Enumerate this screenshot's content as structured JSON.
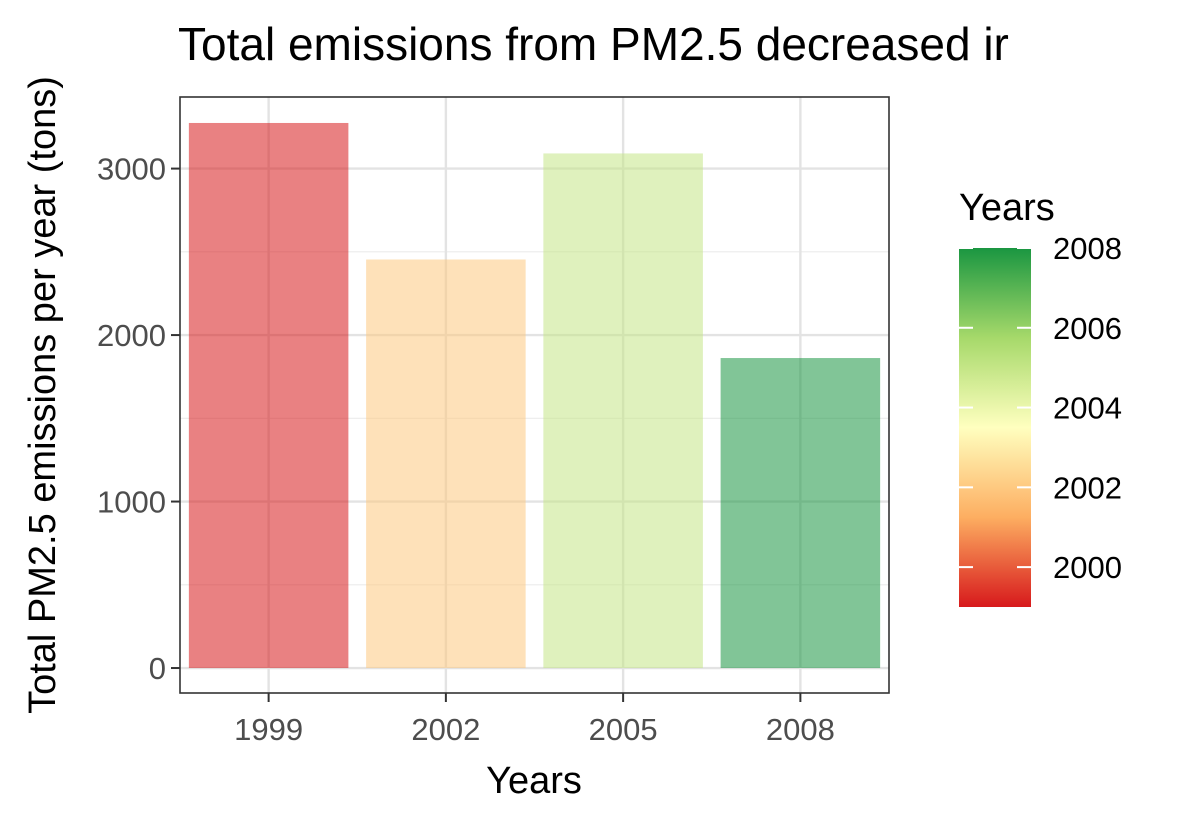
{
  "chart_data": {
    "type": "bar",
    "title": "Total emissions from PM2.5 decreased ir",
    "xlabel": "Years",
    "ylabel": "Total PM2.5 emissions per year (tons)",
    "categories": [
      "1999",
      "2002",
      "2005",
      "2008"
    ],
    "values": [
      3274,
      2454,
      3091,
      1862
    ],
    "x_numeric": [
      1999,
      2002,
      2005,
      2008
    ],
    "ylim": [
      -150,
      3430
    ],
    "yticks": [
      0,
      1000,
      2000,
      3000
    ],
    "ytick_labels": [
      "0",
      "1000",
      "2000",
      "3000"
    ],
    "grid": true,
    "legend": {
      "title": "Years",
      "type": "colorbar",
      "placement": "right",
      "range": [
        1999,
        2008
      ],
      "ticks": [
        2000,
        2002,
        2004,
        2006,
        2008
      ],
      "tick_labels": [
        "2000",
        "2002",
        "2004",
        "2006",
        "2008"
      ],
      "colors": [
        "#d7191c",
        "#fdae61",
        "#ffffbf",
        "#a6d96a",
        "#1a9641"
      ]
    },
    "bar_opacity": 0.55
  }
}
